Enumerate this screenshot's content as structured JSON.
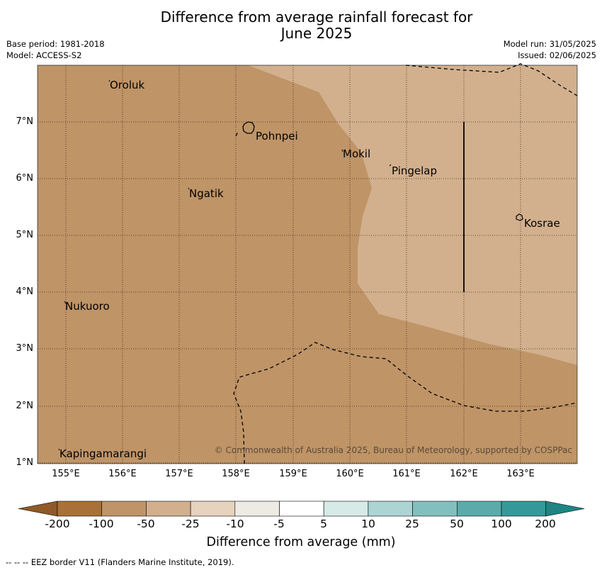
{
  "title_line1": "Difference from average rainfall forecast for",
  "title_line2": "June 2025",
  "meta_left": {
    "base_period": "Base period: 1981-2018",
    "model": "Model: ACCESS-S2"
  },
  "meta_right": {
    "model_run": "Model run: 31/05/2025",
    "issued": "Issued: 02/06/2025"
  },
  "y_ticks": [
    "7°N",
    "6°N",
    "5°N",
    "4°N",
    "3°N",
    "2°N",
    "1°N"
  ],
  "x_ticks": [
    "155°E",
    "156°E",
    "157°E",
    "158°E",
    "159°E",
    "160°E",
    "161°E",
    "162°E",
    "163°E"
  ],
  "places": {
    "oroluk": "Oroluk",
    "pohnpei": "Pohnpei",
    "mokil": "Mokil",
    "pingelap": "Pingelap",
    "ngatik": "Ngatik",
    "kosrae": "Kosrae",
    "nukuoro": "Nukuoro",
    "kapingamarangi": "Kapingamarangi"
  },
  "copyright": "© Commonwealth of Australia 2025, Bureau of Meteorology, supported by COSPPac",
  "colorbar": {
    "labels": [
      "-200",
      "-100",
      "-50",
      "-25",
      "-10",
      "-5",
      "5",
      "10",
      "25",
      "50",
      "100",
      "200"
    ],
    "colors": [
      "#a97138",
      "#bf9467",
      "#d2b08e",
      "#e6d2bd",
      "#eeebe5",
      "#ffffff",
      "#d6eae8",
      "#abd4d3",
      "#82c0bf",
      "#5cabaa",
      "#35999a"
    ],
    "extend_low_color": "#8f5a27",
    "extend_high_color": "#1e8584",
    "title": "Difference from average (mm)"
  },
  "map_colors": {
    "dry_strong": "#bf9467",
    "dry_light": "#d2b08e"
  },
  "footer": "--  --  -- EEZ border V11 (Flanders Marine Institute, 2019)."
}
